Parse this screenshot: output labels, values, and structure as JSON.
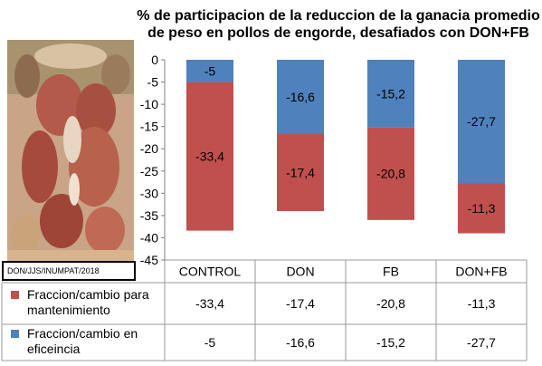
{
  "chart_data": {
    "type": "bar",
    "stacked": true,
    "title": "% de participacion de la reduccion de la ganacia promedio de peso  en pollos de engorde, desafiados con DON+FB",
    "categories": [
      "CONTROL",
      "DON",
      "FB",
      "DON+FB"
    ],
    "ylim": [
      -45,
      0
    ],
    "yticks": [
      0,
      -5,
      -10,
      -15,
      -20,
      -25,
      -30,
      -35,
      -40,
      -45
    ],
    "series": [
      {
        "name": "Fraccion/cambio en eficeincia",
        "values": [
          -5,
          -16.6,
          -15.2,
          -27.7
        ],
        "labels": [
          "-5",
          "-16,6",
          "-15,2",
          "-27,7"
        ],
        "color": "#4f81bd"
      },
      {
        "name": "Fraccion/cambio para mantenimiento",
        "values": [
          -33.4,
          -17.4,
          -20.8,
          -11.3
        ],
        "labels": [
          "-33,4",
          "-17,4",
          "-20,8",
          "-11,3"
        ],
        "color": "#c0504d"
      }
    ],
    "table_rows": [
      {
        "series_index": 1,
        "label_lines": [
          "Fraccion/cambio para",
          "mantenimiento"
        ]
      },
      {
        "series_index": 0,
        "label_lines": [
          "Fraccion/cambio en",
          "eficeincia"
        ]
      }
    ],
    "grid": false
  },
  "caption": "DON/JJS/INUMPAT/2018"
}
